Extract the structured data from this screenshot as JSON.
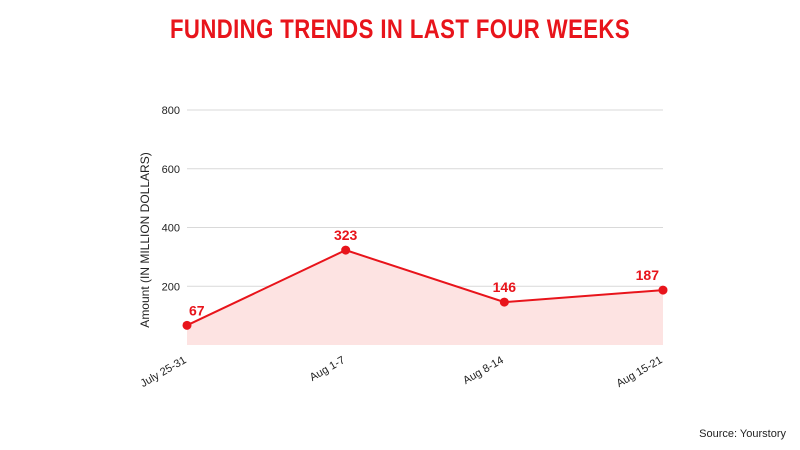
{
  "chart_data": {
    "type": "area",
    "title": "FUNDING TRENDS IN LAST FOUR WEEKS",
    "xlabel": "",
    "ylabel": "Amount (IN MILLION DOLLARS)",
    "categories": [
      "July 25-31",
      "Aug 1-7",
      "Aug 8-14",
      "Aug 15-21"
    ],
    "values": [
      67,
      323,
      146,
      187
    ],
    "data_labels": [
      "67",
      "323",
      "146",
      "187"
    ],
    "yticks": [
      200,
      400,
      600,
      800
    ],
    "ytick_labels": [
      "200",
      "400",
      "600",
      "800"
    ],
    "ylim": [
      0,
      800
    ],
    "grid": true,
    "line_color": "#e8141b",
    "fill_color": "#fde3e2",
    "grid_color": "#d9d9d9"
  },
  "source": "Source: Yourstory"
}
